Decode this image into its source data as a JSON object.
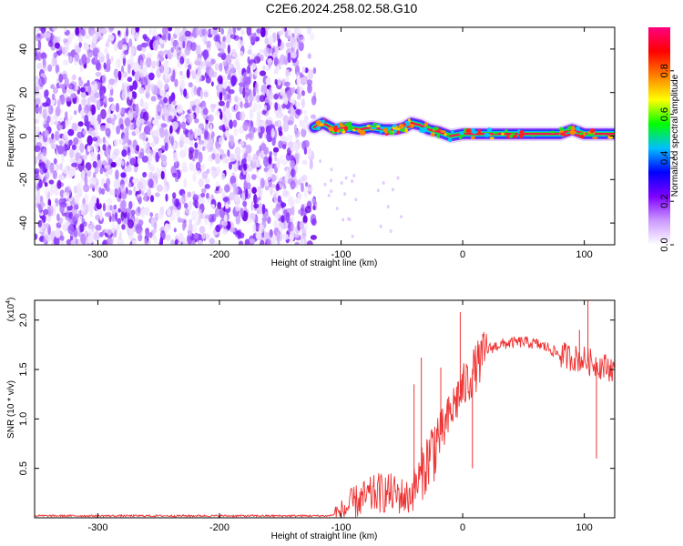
{
  "title": "C2E6.2024.258.02.58.G10",
  "chart_data": [
    {
      "type": "heatmap",
      "xlabel": "Height of straight line (km)",
      "ylabel": "Frequency (Hz)",
      "xlim": [
        -352,
        125
      ],
      "ylim": [
        -50,
        50
      ],
      "xticks": [
        -300,
        -200,
        -100,
        0,
        100
      ],
      "yticks": [
        -40,
        -20,
        0,
        20,
        40
      ],
      "noise_region_x": [
        -352,
        -120
      ],
      "signal_ridge": {
        "x": [
          -122,
          -115,
          -105,
          -95,
          -85,
          -75,
          -65,
          -55,
          -48,
          -42,
          -35,
          -28,
          -20,
          -10,
          0,
          20,
          40,
          60,
          80,
          90,
          100,
          110,
          125
        ],
        "freq": [
          4,
          6,
          3,
          4,
          3,
          4,
          3,
          3,
          4,
          6,
          5,
          3,
          2,
          0,
          1,
          1,
          1,
          1,
          1,
          3,
          1,
          1,
          1
        ]
      },
      "colorbar": {
        "label": "Normalized spectral amplitude",
        "range": [
          0,
          1
        ],
        "ticks": [
          "0.0",
          "0.2",
          "0.4",
          "0.6",
          "0.8"
        ],
        "colors": [
          "#ffffff",
          "#cc99ff",
          "#7f00ff",
          "#0000ff",
          "#00bfff",
          "#00ff00",
          "#ffff00",
          "#ff7f00",
          "#ff0000",
          "#ff0080"
        ]
      }
    },
    {
      "type": "line",
      "xlabel": "Height of straight line (km)",
      "ylabel": "SNR (10 * v/v)",
      "scale_label": "(x10",
      "scale_exp": "4",
      "scale_close": ")",
      "xlim": [
        -352,
        125
      ],
      "ylim": [
        0,
        2.2
      ],
      "xticks": [
        -300,
        -200,
        -100,
        0,
        100
      ],
      "yticks": [
        0.5,
        1.0,
        1.5,
        2.0
      ],
      "ytick_labels": [
        "0.5",
        "1.0",
        "1.5",
        "2.0"
      ],
      "color": "#ee3333",
      "series": [
        {
          "x": [
            -352,
            -300,
            -200,
            -110,
            -100,
            -90,
            -80,
            -70,
            -60,
            -50,
            -45,
            -40,
            -35,
            -30,
            -25,
            -20,
            -15,
            -10,
            -5,
            0,
            10,
            20,
            30,
            40,
            50,
            60,
            70,
            80,
            90,
            100,
            110,
            120,
            125
          ],
          "values": [
            0.02,
            0.02,
            0.02,
            0.02,
            0.05,
            0.15,
            0.2,
            0.25,
            0.25,
            0.22,
            0.2,
            0.3,
            0.4,
            0.55,
            0.7,
            0.8,
            0.9,
            1.05,
            1.2,
            1.3,
            1.5,
            1.7,
            1.75,
            1.77,
            1.78,
            1.76,
            1.72,
            1.65,
            1.62,
            1.6,
            1.55,
            1.52,
            1.5
          ]
        }
      ],
      "spikes": [
        {
          "x": -40,
          "y": 1.35
        },
        {
          "x": -34,
          "y": 1.62
        },
        {
          "x": -18,
          "y": 1.52
        },
        {
          "x": -2,
          "y": 2.08
        },
        {
          "x": 8,
          "y": 0.5
        },
        {
          "x": 103,
          "y": 2.2
        },
        {
          "x": 110,
          "y": 0.6
        },
        {
          "x": 96,
          "y": 1.9
        }
      ]
    }
  ]
}
